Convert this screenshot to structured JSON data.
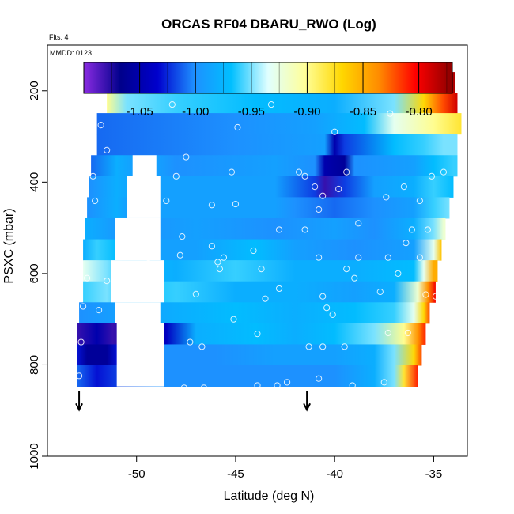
{
  "chart_data": {
    "type": "heatmap",
    "title": "ORCAS RF04 DBARU_RWO (Log)",
    "annotations": [
      "Flts: 4",
      "MMDD: 0123"
    ],
    "xlabel": "Latitude (deg N)",
    "ylabel": "PSXC (mbar)",
    "xlim": [
      -54.5,
      -33.3
    ],
    "ylim": [
      1000,
      100
    ],
    "x_ticks": [
      -50,
      -45,
      -40,
      -35
    ],
    "x_tick_labels": [
      "-50",
      "-45",
      "-40",
      "-35"
    ],
    "y_ticks": [
      200,
      400,
      600,
      800,
      1000
    ],
    "y_tick_labels": [
      "200",
      "400",
      "600",
      "800",
      "1000"
    ],
    "colorbar": {
      "range": [
        -1.1,
        -0.77
      ],
      "ticks": [
        -1.05,
        -1.0,
        -0.95,
        -0.9,
        -0.85,
        -0.8
      ],
      "tick_labels": [
        "-1.05",
        "-1.00",
        "-0.95",
        "-0.90",
        "-0.85",
        "-0.80"
      ],
      "colors": [
        "#8a2be2",
        "#00008b",
        "#0000cd",
        "#1e90ff",
        "#00bfff",
        "#e0ffff",
        "#ffff99",
        "#ffd700",
        "#ff8c00",
        "#ff0000",
        "#8b0000"
      ]
    },
    "arrows": [
      {
        "x": -52.9,
        "y": 895
      },
      {
        "x": -41.4,
        "y": 895
      }
    ],
    "rows": [
      {
        "p": 182,
        "x0": -51.2,
        "x1": -33.9,
        "stops": [
          [
            -51.2,
            -0.78
          ],
          [
            -49.5,
            -0.79
          ],
          [
            -48.5,
            -0.85
          ],
          [
            -44,
            -0.88
          ],
          [
            -40,
            -0.91
          ],
          [
            -38.5,
            -0.93
          ],
          [
            -38.4,
            -0.88
          ],
          [
            -36,
            -0.82
          ],
          [
            -34,
            -0.78
          ]
        ]
      },
      {
        "p": 228,
        "x0": -51.5,
        "x1": -33.8,
        "stops": [
          [
            -51.5,
            -0.9
          ],
          [
            -50.5,
            -0.95
          ],
          [
            -48,
            -0.96
          ],
          [
            -44,
            -0.97
          ],
          [
            -40,
            -0.98
          ],
          [
            -37,
            -0.95
          ],
          [
            -35.5,
            -0.87
          ],
          [
            -34.5,
            -0.82
          ],
          [
            -33.8,
            -0.79
          ]
        ]
      },
      {
        "p": 272,
        "x0": -52.0,
        "x1": -33.6,
        "stops": [
          [
            -52,
            -1.01
          ],
          [
            -45,
            -1.0
          ],
          [
            -41,
            -0.99
          ],
          [
            -38.5,
            -0.97
          ],
          [
            -37,
            -0.93
          ],
          [
            -35,
            -0.9
          ],
          [
            -33.6,
            -0.88
          ]
        ]
      },
      {
        "p": 318,
        "x0": -52.0,
        "x1": -33.8,
        "stops": [
          [
            -52,
            -1.01
          ],
          [
            -45,
            -1.0
          ],
          [
            -40.5,
            -0.99
          ],
          [
            -40,
            -1.05
          ],
          [
            -39.5,
            -1.02
          ],
          [
            -37,
            -0.97
          ],
          [
            -35.5,
            -0.96
          ],
          [
            -34.5,
            -0.95
          ],
          [
            -33.8,
            -0.95
          ]
        ]
      },
      {
        "p": 364,
        "x0": -52.3,
        "x1": -33.8,
        "stops": [
          [
            -52.3,
            -1.01
          ],
          [
            -51,
            -0.98
          ],
          [
            -50.2,
            -0.99
          ],
          [
            -49,
            -0.99
          ],
          [
            -48,
            -1.0
          ],
          [
            -43,
            -0.99
          ],
          [
            -41,
            -1.0
          ],
          [
            -40.5,
            -1.05
          ],
          [
            -39.5,
            -1.06
          ],
          [
            -39,
            -1.0
          ],
          [
            -36,
            -0.99
          ],
          [
            -35,
            -0.97
          ],
          [
            -34,
            -0.96
          ]
        ]
      },
      {
        "p": 410,
        "x0": -52.4,
        "x1": -34.0,
        "stops": [
          [
            -52.4,
            -1.0
          ],
          [
            -51,
            -0.98
          ],
          [
            -50,
            -0.99
          ],
          [
            -46,
            -0.99
          ],
          [
            -43,
            -0.99
          ],
          [
            -41,
            -1.02
          ],
          [
            -40.5,
            -1.08
          ],
          [
            -39.5,
            -1.02
          ],
          [
            -38,
            -0.99
          ],
          [
            -36,
            -0.98
          ],
          [
            -35,
            -0.96
          ],
          [
            -34,
            -0.97
          ]
        ]
      },
      {
        "p": 456,
        "x0": -52.5,
        "x1": -34.2,
        "stops": [
          [
            -52.5,
            -1.0
          ],
          [
            -51,
            -0.98
          ],
          [
            -50.5,
            -0.99
          ],
          [
            -46,
            -0.99
          ],
          [
            -43,
            -0.99
          ],
          [
            -42,
            -1.0
          ],
          [
            -40,
            -1.01
          ],
          [
            -38,
            -1.0
          ],
          [
            -36,
            -0.99
          ],
          [
            -35,
            -0.96
          ],
          [
            -34.2,
            -0.95
          ]
        ]
      },
      {
        "p": 502,
        "x0": -52.6,
        "x1": -34.4,
        "stops": [
          [
            -52.6,
            -0.98
          ],
          [
            -51.5,
            -0.99
          ],
          [
            -50.5,
            -1.0
          ],
          [
            -47,
            -0.99
          ],
          [
            -43,
            -1.0
          ],
          [
            -40,
            -0.99
          ],
          [
            -38,
            -1.0
          ],
          [
            -36,
            -0.98
          ],
          [
            -35,
            -0.95
          ],
          [
            -34.5,
            -0.92
          ]
        ]
      },
      {
        "p": 548,
        "x0": -52.7,
        "x1": -34.6,
        "stops": [
          [
            -52.7,
            -0.98
          ],
          [
            -52,
            -0.96
          ],
          [
            -51,
            -0.97
          ],
          [
            -50.5,
            -0.99
          ],
          [
            -47,
            -0.99
          ],
          [
            -44,
            -0.97
          ],
          [
            -42,
            -0.99
          ],
          [
            -39,
            -1.0
          ],
          [
            -36,
            -0.99
          ],
          [
            -35,
            -0.93
          ],
          [
            -34.6,
            -0.86
          ]
        ]
      },
      {
        "p": 594,
        "x0": -52.7,
        "x1": -34.8,
        "stops": [
          [
            -52.7,
            -0.93
          ],
          [
            -51.5,
            -0.95
          ],
          [
            -50.5,
            -0.97
          ],
          [
            -48,
            -0.98
          ],
          [
            -45,
            -0.96
          ],
          [
            -42,
            -0.98
          ],
          [
            -39,
            -0.98
          ],
          [
            -36,
            -0.97
          ],
          [
            -35.5,
            -0.93
          ],
          [
            -35,
            -0.85
          ]
        ]
      },
      {
        "p": 640,
        "x0": -52.7,
        "x1": -34.9,
        "stops": [
          [
            -52.7,
            -0.96
          ],
          [
            -51.5,
            -0.95
          ],
          [
            -50.5,
            -0.97
          ],
          [
            -48,
            -0.96
          ],
          [
            -45,
            -0.98
          ],
          [
            -42,
            -0.98
          ],
          [
            -39,
            -0.99
          ],
          [
            -37,
            -0.98
          ],
          [
            -35.8,
            -0.92
          ],
          [
            -35.3,
            -0.84
          ],
          [
            -34.9,
            -0.8
          ]
        ]
      },
      {
        "p": 686,
        "x0": -52.9,
        "x1": -35.2,
        "stops": [
          [
            -52.9,
            -1.0
          ],
          [
            -51,
            -0.99
          ],
          [
            -50,
            -0.99
          ],
          [
            -48,
            -0.98
          ],
          [
            -45,
            -0.97
          ],
          [
            -42,
            -0.98
          ],
          [
            -39,
            -0.97
          ],
          [
            -37,
            -0.96
          ],
          [
            -36,
            -0.93
          ],
          [
            -35.5,
            -0.87
          ],
          [
            -35.2,
            -0.82
          ]
        ]
      },
      {
        "p": 732,
        "x0": -53.0,
        "x1": -35.4,
        "stops": [
          [
            -53,
            -1.08
          ],
          [
            -52,
            -1.05
          ],
          [
            -51.2,
            -1.08
          ],
          [
            -49,
            -1.06
          ],
          [
            -48.5,
            -1.04
          ],
          [
            -47,
            -0.98
          ],
          [
            -44,
            -0.97
          ],
          [
            -42,
            -0.98
          ],
          [
            -40,
            -0.97
          ],
          [
            -38,
            -0.95
          ],
          [
            -36.5,
            -0.9
          ],
          [
            -35.8,
            -0.84
          ],
          [
            -35.4,
            -0.81
          ]
        ]
      },
      {
        "p": 778,
        "x0": -53.0,
        "x1": -35.6,
        "stops": [
          [
            -53,
            -1.03
          ],
          [
            -52.5,
            -1.06
          ],
          [
            -51.5,
            -1.06
          ],
          [
            -51,
            -1.03
          ],
          [
            -49,
            -1.0
          ],
          [
            -46,
            -1.0
          ],
          [
            -43,
            -0.99
          ],
          [
            -40,
            -0.99
          ],
          [
            -38,
            -0.98
          ],
          [
            -37,
            -0.95
          ],
          [
            -36,
            -0.87
          ],
          [
            -35.6,
            -0.82
          ]
        ]
      },
      {
        "p": 824,
        "x0": -53.0,
        "x1": -35.8,
        "stops": [
          [
            -53,
            -1.01
          ],
          [
            -52,
            -1.03
          ],
          [
            -51,
            -1.02
          ],
          [
            -49,
            -1.0
          ],
          [
            -46,
            -1.0
          ],
          [
            -43,
            -1.0
          ],
          [
            -40,
            -1.0
          ],
          [
            -38,
            -0.98
          ],
          [
            -37,
            -0.95
          ],
          [
            -36.5,
            -0.88
          ],
          [
            -35.8,
            -0.81
          ]
        ]
      }
    ],
    "gaps": [
      {
        "x0": -50.2,
        "x1": -49.0,
        "p0": 341,
        "p1": 387
      },
      {
        "x0": -50.5,
        "x1": -48.8,
        "p0": 387,
        "p1": 479
      },
      {
        "x0": -51.1,
        "x1": -48.8,
        "p0": 479,
        "p1": 571
      },
      {
        "x0": -51.3,
        "x1": -48.6,
        "p0": 571,
        "p1": 663
      },
      {
        "x0": -51.1,
        "x1": -48.8,
        "p0": 663,
        "p1": 709
      },
      {
        "x0": -51.0,
        "x1": -48.6,
        "p0": 709,
        "p1": 847
      }
    ],
    "points": [
      [
        -51.1,
        182
      ],
      [
        -50.6,
        182
      ],
      [
        -50.1,
        182
      ],
      [
        -49.7,
        182
      ],
      [
        -49.2,
        182
      ],
      [
        -48.6,
        196
      ],
      [
        -37.9,
        182
      ],
      [
        -37.1,
        182
      ],
      [
        -36.1,
        182
      ],
      [
        -35.5,
        182
      ],
      [
        -34.7,
        182
      ],
      [
        -39.2,
        196
      ],
      [
        -38.7,
        182
      ],
      [
        -48.2,
        230
      ],
      [
        -43.2,
        230
      ],
      [
        -40,
        290
      ],
      [
        -44.9,
        280
      ],
      [
        -51.8,
        275
      ],
      [
        -37.2,
        250
      ],
      [
        -47.5,
        345
      ],
      [
        -51.5,
        330
      ],
      [
        -52.2,
        387
      ],
      [
        -48,
        387
      ],
      [
        -45.2,
        378
      ],
      [
        -41.8,
        378
      ],
      [
        -41.5,
        387
      ],
      [
        -39.4,
        378
      ],
      [
        -35.1,
        387
      ],
      [
        -34.5,
        378
      ],
      [
        -41,
        410
      ],
      [
        -39.8,
        415
      ],
      [
        -52.1,
        441
      ],
      [
        -48.5,
        441
      ],
      [
        -46.2,
        450
      ],
      [
        -45,
        448
      ],
      [
        -40.6,
        430
      ],
      [
        -36.5,
        410
      ],
      [
        -35.7,
        441
      ],
      [
        -37.4,
        433
      ],
      [
        -40.8,
        460
      ],
      [
        -47.7,
        519
      ],
      [
        -46.2,
        540
      ],
      [
        -42.8,
        504
      ],
      [
        -41.5,
        504
      ],
      [
        -38.8,
        490
      ],
      [
        -36.1,
        504
      ],
      [
        -35.3,
        504
      ],
      [
        -36.4,
        533
      ],
      [
        -49.4,
        565
      ],
      [
        -47.8,
        560
      ],
      [
        -45.6,
        565
      ],
      [
        -44.1,
        550
      ],
      [
        -40.8,
        565
      ],
      [
        -38.8,
        565
      ],
      [
        -37.3,
        565
      ],
      [
        -35.7,
        565
      ],
      [
        -52.5,
        610
      ],
      [
        -51.5,
        616
      ],
      [
        -47,
        645
      ],
      [
        -45.9,
        575
      ],
      [
        -45.8,
        590
      ],
      [
        -43.7,
        590
      ],
      [
        -42.8,
        633
      ],
      [
        -40.6,
        650
      ],
      [
        -39.4,
        590
      ],
      [
        -37.7,
        640
      ],
      [
        -35.4,
        646
      ],
      [
        -34.9,
        650
      ],
      [
        -52.7,
        672
      ],
      [
        -51.9,
        680
      ],
      [
        -45.1,
        700
      ],
      [
        -43.5,
        655
      ],
      [
        -40.4,
        675
      ],
      [
        -40.1,
        690
      ],
      [
        -39,
        610
      ],
      [
        -36.8,
        600
      ],
      [
        -52.8,
        750
      ],
      [
        -47.3,
        750
      ],
      [
        -46.7,
        760
      ],
      [
        -43.9,
        732
      ],
      [
        -41.3,
        760
      ],
      [
        -40.6,
        760
      ],
      [
        -39.5,
        760
      ],
      [
        -37.3,
        730
      ],
      [
        -36.3,
        730
      ],
      [
        -52.9,
        824
      ],
      [
        -47.6,
        850
      ],
      [
        -46.6,
        850
      ],
      [
        -43.9,
        845
      ],
      [
        -42.9,
        845
      ],
      [
        -42.4,
        838
      ],
      [
        -40.8,
        830
      ],
      [
        -39.1,
        845
      ],
      [
        -37.5,
        838
      ],
      [
        -35.7,
        860
      ]
    ]
  }
}
